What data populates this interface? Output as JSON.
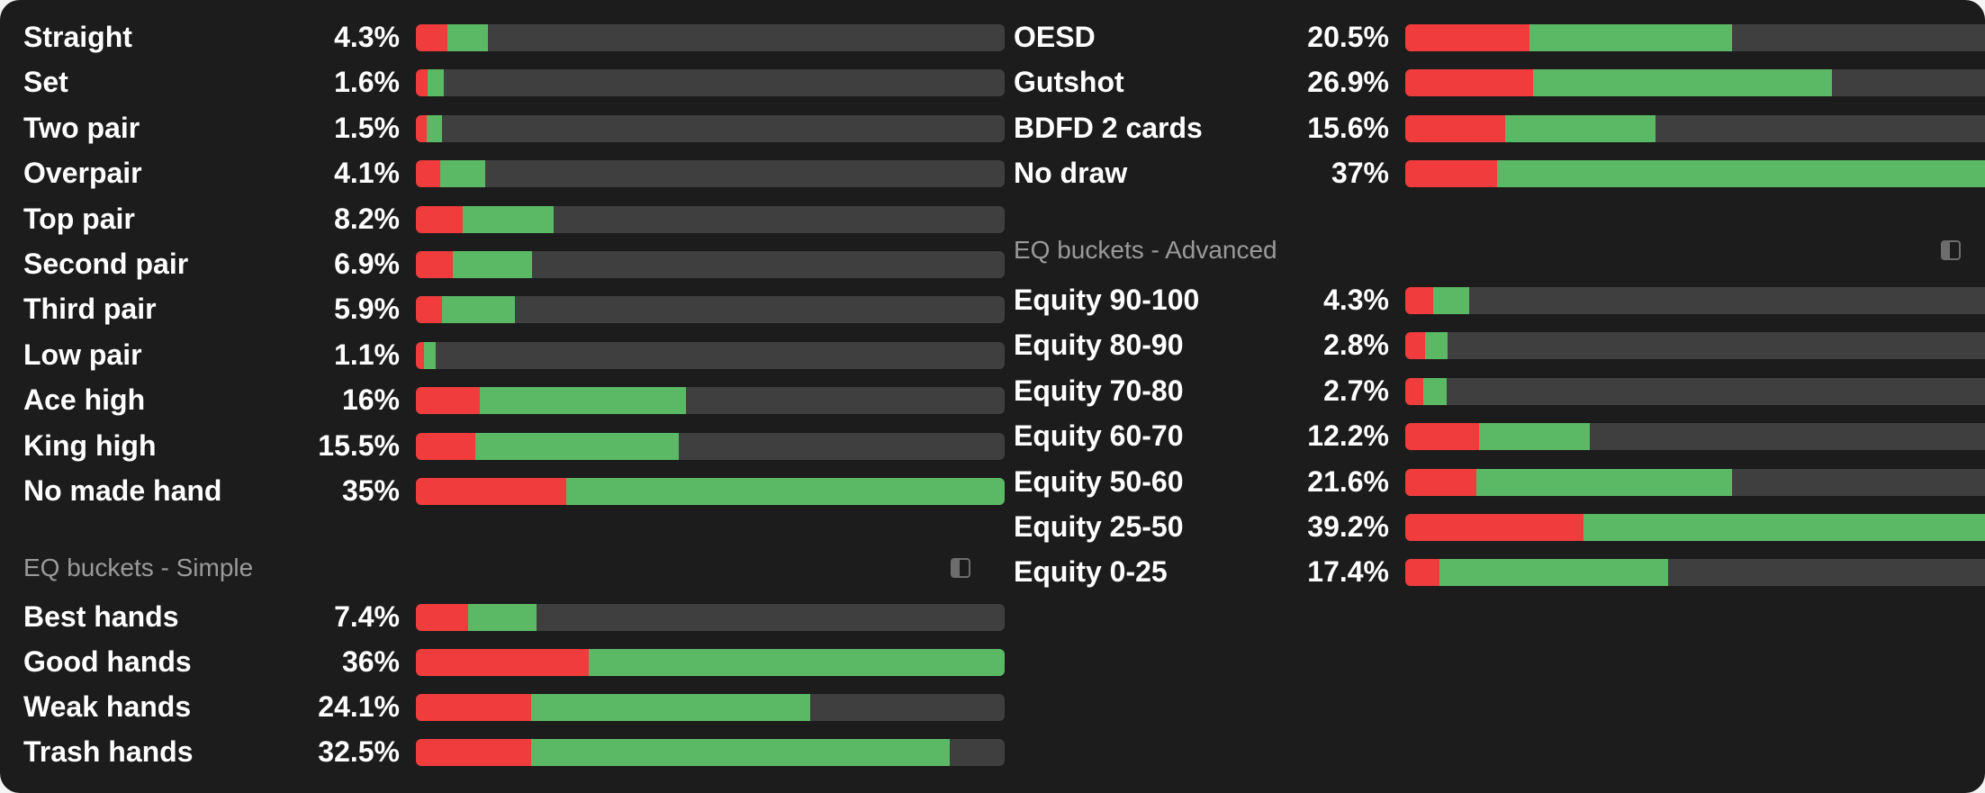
{
  "colors": {
    "background": "#1c1c1c",
    "track": "#3f3f3f",
    "red": "#f03c3c",
    "green": "#5bb965",
    "section_title": "#9a9a9a"
  },
  "left": {
    "made_hands": [
      {
        "label": "Straight",
        "pct": "4.3%",
        "red": 0.053,
        "green": 0.069
      },
      {
        "label": "Set",
        "pct": "1.6%",
        "red": 0.02,
        "green": 0.027
      },
      {
        "label": "Two pair",
        "pct": "1.5%",
        "red": 0.019,
        "green": 0.025
      },
      {
        "label": "Overpair",
        "pct": "4.1%",
        "red": 0.042,
        "green": 0.076
      },
      {
        "label": "Top pair",
        "pct": "8.2%",
        "red": 0.08,
        "green": 0.154
      },
      {
        "label": "Second pair",
        "pct": "6.9%",
        "red": 0.063,
        "green": 0.135
      },
      {
        "label": "Third pair",
        "pct": "5.9%",
        "red": 0.045,
        "green": 0.123
      },
      {
        "label": "Low pair",
        "pct": "1.1%",
        "red": 0.013,
        "green": 0.02
      },
      {
        "label": "Ace high",
        "pct": "16%",
        "red": 0.109,
        "green": 0.349
      },
      {
        "label": "King high",
        "pct": "15.5%",
        "red": 0.101,
        "green": 0.346
      },
      {
        "label": "No made hand",
        "pct": "35%",
        "red": 0.256,
        "green": 0.744
      }
    ],
    "simple_title": "EQ buckets - Simple",
    "simple_toggle_icon": "panel-toggle-icon",
    "simple": [
      {
        "label": "Best hands",
        "pct": "7.4%",
        "red": 0.089,
        "green": 0.116
      },
      {
        "label": "Good hands",
        "pct": "36%",
        "red": 0.293,
        "green": 0.707
      },
      {
        "label": "Weak hands",
        "pct": "24.1%",
        "red": 0.196,
        "green": 0.473
      },
      {
        "label": "Trash hands",
        "pct": "32.5%",
        "red": 0.196,
        "green": 0.71
      }
    ]
  },
  "right": {
    "draws": [
      {
        "label": "OESD",
        "pct": "20.5%",
        "red": 0.21,
        "green": 0.344
      },
      {
        "label": "Gutshot",
        "pct": "26.9%",
        "red": 0.217,
        "green": 0.507
      },
      {
        "label": "BDFD 2 cards",
        "pct": "15.6%",
        "red": 0.17,
        "green": 0.254
      },
      {
        "label": "No draw",
        "pct": "37%",
        "red": 0.156,
        "green": 0.844
      }
    ],
    "advanced_title": "EQ buckets - Advanced",
    "advanced_toggle_icon": "panel-toggle-icon",
    "advanced": [
      {
        "label": "Equity 90-100",
        "pct": "4.3%",
        "red": 0.047,
        "green": 0.062
      },
      {
        "label": "Equity 80-90",
        "pct": "2.8%",
        "red": 0.034,
        "green": 0.038
      },
      {
        "label": "Equity 70-80",
        "pct": "2.7%",
        "red": 0.03,
        "green": 0.04
      },
      {
        "label": "Equity 60-70",
        "pct": "12.2%",
        "red": 0.125,
        "green": 0.188
      },
      {
        "label": "Equity 50-60",
        "pct": "21.6%",
        "red": 0.121,
        "green": 0.433
      },
      {
        "label": "Equity 25-50",
        "pct": "39.2%",
        "red": 0.302,
        "green": 0.698
      },
      {
        "label": "Equity 0-25",
        "pct": "17.4%",
        "red": 0.058,
        "green": 0.388
      }
    ]
  }
}
